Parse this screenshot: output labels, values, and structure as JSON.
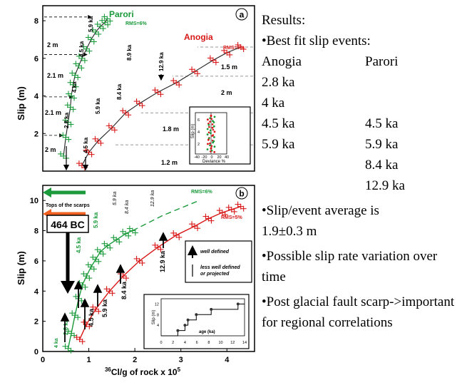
{
  "panel_a": {
    "label": "a",
    "parori_label": "Parori",
    "anogia_label": "Anogia",
    "rms_parori": "RMS=6%",
    "rms_anogia": "RMS=5%",
    "ylabel": "Slip (m)",
    "yticks": [
      "2",
      "4",
      "6",
      "8"
    ],
    "parori_events": [
      "2.8 ka",
      "4 ka",
      "4.5 ka",
      "5.9 ka"
    ],
    "anogia_events": [
      "4.5 ka",
      "5.9 ka",
      "8.4 ka",
      "8.9 ka",
      "12.9 ka"
    ],
    "parori_slips": [
      "2 m",
      "2.1 m",
      "2.1 m",
      "2 m"
    ],
    "anogia_slips": [
      "1.5 m",
      "2 m",
      "1.8 m",
      "1.2 m"
    ],
    "inset": {
      "ylabel": "Slip (m)",
      "xlabel": "Deviance %",
      "xticks": [
        "-40",
        "-20",
        "0",
        "20",
        "40"
      ],
      "yticks": [
        "2",
        "4",
        "6"
      ]
    }
  },
  "panel_b": {
    "label": "b",
    "tops_label": "Tops of the scarps",
    "rms_parori": "RMS=6%",
    "rms_anogia": "RMS=5%",
    "bc_label": "464 BC",
    "ylabel": "Slip (m)",
    "xlabel_pre": "36",
    "xlabel_main": "Cl/g of rock x 10",
    "xlabel_sup": "5",
    "xticks": [
      "0",
      "1",
      "2",
      "3",
      "4"
    ],
    "yticks": [
      "0",
      "2",
      "4",
      "6",
      "8",
      "10"
    ],
    "parori_events": [
      "2.8 ka",
      "4.5 ka",
      "5.9 ka",
      "4 ka"
    ],
    "anogia_events": [
      "4.5 ka",
      "5.9 ka",
      "8.4 ka",
      "12.9 ka",
      "5.9 ka",
      "8.4 ka",
      "12.9 ka"
    ],
    "legend": [
      "well defined",
      "less well defined or projected"
    ],
    "inset": {
      "ylabel": "Slip (m)",
      "xlabel": "age (ka)",
      "xticks": [
        "0",
        "2",
        "4",
        "6",
        "8",
        "10",
        "12",
        "14"
      ],
      "yticks": [
        "4",
        "8",
        "12"
      ]
    }
  },
  "notes": {
    "results": "Results:",
    "best_fit": "•Best fit slip events:",
    "col1_head": "Anogia",
    "col2_head": "Parori",
    "rows": [
      [
        "2.8 ka",
        ""
      ],
      [
        "4 ka",
        ""
      ],
      [
        "4.5 ka",
        "4.5 ka"
      ],
      [
        "5.9 ka",
        "5.9 ka"
      ],
      [
        "",
        "8.4 ka"
      ],
      [
        "",
        "12.9 ka"
      ]
    ],
    "avg_1": "•Slip/event average is",
    "avg_2": "1.9±0.3 m",
    "rate": "•Possible slip rate variation over time",
    "post": "•Post glacial fault scarp->important for regional correlations"
  },
  "colors": {
    "parori": "#1a9a3a",
    "anogia": "#d81818",
    "gray": "#888888"
  },
  "chart_data": [
    {
      "type": "scatter",
      "title": "",
      "ylabel": "Slip (m)",
      "ylim": [
        0,
        8.8
      ],
      "series": [
        {
          "name": "Parori",
          "x": [
            0.45,
            0.5,
            0.55,
            0.6,
            0.62,
            0.66,
            0.7,
            0.78,
            0.85,
            0.95,
            1.05,
            1.15,
            1.25,
            1.35,
            1.4
          ],
          "y": [
            0.8,
            1.8,
            2.6,
            3.4,
            4.0,
            4.6,
            5.1,
            5.6,
            6.0,
            6.5,
            7.0,
            7.4,
            7.7,
            7.9,
            8.1
          ]
        },
        {
          "name": "Anogia",
          "x": [
            0.85,
            1.0,
            1.2,
            1.5,
            1.8,
            2.1,
            2.5,
            2.9,
            3.3,
            3.7,
            4.0,
            4.3
          ],
          "y": [
            0.3,
            1.0,
            1.6,
            2.3,
            3.1,
            3.6,
            4.2,
            4.7,
            5.3,
            5.9,
            6.3,
            6.6
          ]
        }
      ]
    },
    {
      "type": "scatter",
      "title": "",
      "xlabel": "36Cl/g of rock x 10^5",
      "ylabel": "Slip (m)",
      "xlim": [
        0,
        4.6
      ],
      "ylim": [
        0,
        11
      ],
      "series": [
        {
          "name": "Parori",
          "x": [
            0.55,
            0.62,
            0.7,
            0.78,
            0.86,
            0.95,
            1.05,
            1.15,
            1.25,
            1.4,
            1.6,
            1.8,
            1.95
          ],
          "y": [
            0.2,
            1.2,
            2.4,
            3.5,
            4.4,
            5.0,
            5.6,
            6.1,
            6.6,
            7.0,
            7.4,
            7.8,
            8.0
          ]
        },
        {
          "name": "Anogia",
          "x": [
            0.8,
            0.95,
            1.15,
            1.45,
            1.75,
            2.1,
            2.5,
            2.9,
            3.3,
            3.6,
            3.9,
            4.1,
            4.3
          ],
          "y": [
            0.8,
            1.8,
            2.8,
            4.0,
            5.0,
            6.0,
            6.9,
            7.7,
            8.3,
            8.8,
            9.2,
            9.4,
            9.6
          ]
        }
      ]
    }
  ]
}
